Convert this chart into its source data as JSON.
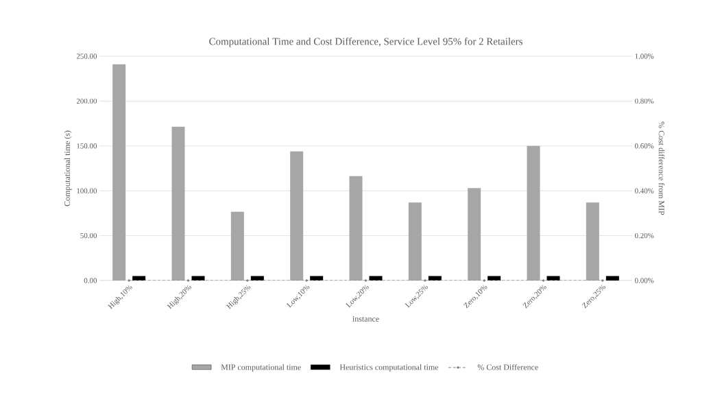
{
  "chart_data": {
    "type": "bar",
    "title": "Computational Time and Cost Difference, Service Level 95% for 2 Retailers",
    "xlabel": "instance",
    "ylabel": "Computational time (s)",
    "y2label": "% Cost difference from MIP",
    "categories": [
      "High,10%",
      "High,20%",
      "High,25%",
      "Low,10%",
      "Low,20%",
      "Low,25%",
      "Zero,10%",
      "Zero,20%",
      "Zero,25%"
    ],
    "series": [
      {
        "name": "MIP computational time",
        "color": "#a6a6a6",
        "values": [
          241,
          171.5,
          76.6,
          144,
          116.4,
          87,
          103,
          150,
          87
        ]
      },
      {
        "name": "Heuristics computational time",
        "color": "#000000",
        "values": [
          5,
          5,
          5,
          5,
          5,
          5,
          5,
          5,
          5
        ]
      },
      {
        "name": "% Cost Difference",
        "type": "line",
        "axis": "y2",
        "color": "#808080",
        "line_style": "dashed",
        "marker": "circle",
        "values": [
          0,
          0,
          0,
          0,
          0,
          0,
          0,
          0,
          0
        ]
      }
    ],
    "ylim": [
      0,
      250
    ],
    "yticks": [
      {
        "value": 0,
        "label": "0.00"
      },
      {
        "value": 50,
        "label": "50.00"
      },
      {
        "value": 100,
        "label": "100.00"
      },
      {
        "value": 150,
        "label": "150.00"
      },
      {
        "value": 200,
        "label": "200.00"
      },
      {
        "value": 250,
        "label": "250.00"
      }
    ],
    "y2lim": [
      0,
      1
    ],
    "y2ticks": [
      {
        "value": 0,
        "label": "0.00%"
      },
      {
        "value": 0.2,
        "label": "0.20%"
      },
      {
        "value": 0.4,
        "label": "0.40%"
      },
      {
        "value": 0.6,
        "label": "0.60%"
      },
      {
        "value": 0.8,
        "label": "0.80%"
      },
      {
        "value": 1,
        "label": "1.00%"
      }
    ],
    "grid": "y",
    "legend": "bottom"
  }
}
